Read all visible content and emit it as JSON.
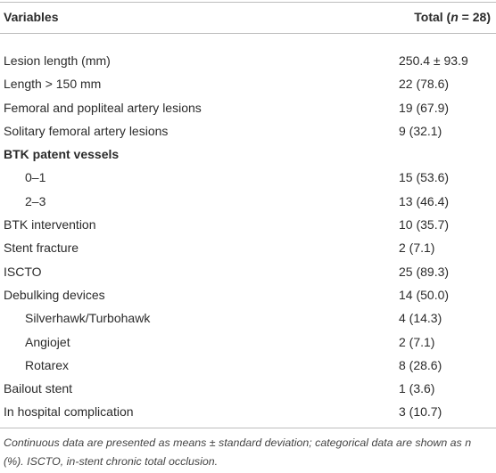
{
  "table": {
    "header": {
      "variables": "Variables",
      "total": [
        "Total (",
        "n",
        " = 28)"
      ]
    },
    "rows": [
      {
        "label": "Lesion length (mm)",
        "value": "250.4 ± 93.9"
      },
      {
        "label": "Length > 150 mm",
        "value": "22 (78.6)"
      },
      {
        "label": "Femoral and popliteal artery lesions",
        "value": "19 (67.9)"
      },
      {
        "label": "Solitary femoral artery lesions",
        "value": "9 (32.1)"
      },
      {
        "label": "BTK patent vessels",
        "children": [
          {
            "label": "0–1",
            "value": "15 (53.6)"
          },
          {
            "label": "2–3",
            "value": "13 (46.4)"
          }
        ]
      },
      {
        "label": "BTK intervention",
        "value": "10 (35.7)"
      },
      {
        "label": "Stent fracture",
        "value": "2 (7.1)"
      },
      {
        "label": "ISCTO",
        "value": "25 (89.3)"
      },
      {
        "label": "Debulking devices",
        "value": "14 (50.0)",
        "children": [
          {
            "label": "Silverhawk/Turbohawk",
            "value": "4 (14.3)"
          },
          {
            "label": "Angiojet",
            "value": "2 (7.1)"
          },
          {
            "label": "Rotarex",
            "value": "8 (28.6)"
          }
        ]
      },
      {
        "label": "Bailout stent",
        "value": "1 (3.6)"
      },
      {
        "label": "In hospital complication",
        "value": "3 (10.7)"
      }
    ],
    "footnote": "Continuous data are presented as means ± standard deviation; categorical data are shown as n (%). ISCTO, in-stent chronic total occlusion."
  }
}
